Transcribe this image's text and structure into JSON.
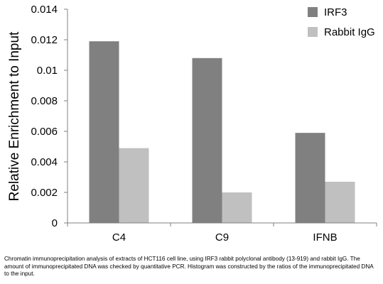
{
  "chart_data": {
    "type": "bar",
    "title": "",
    "xlabel": "",
    "ylabel": "Relative Enrichment to Input",
    "categories": [
      "C4",
      "C9",
      "IFNB"
    ],
    "series": [
      {
        "name": "IRF3",
        "values": [
          0.0119,
          0.0108,
          0.0059
        ],
        "color": "#808080"
      },
      {
        "name": "Rabbit IgG",
        "values": [
          0.0049,
          0.002,
          0.0027
        ],
        "color": "#c0c0c0"
      }
    ],
    "ylim": [
      0,
      0.014
    ],
    "yticks": [
      "0",
      "0.002",
      "0.004",
      "0.006",
      "0.008",
      "0.01",
      "0.012",
      "0.014"
    ],
    "grid": false,
    "legend": "top-right"
  },
  "caption": "Chromatin immunoprecipitation analysis of extracts of HCT116 cell line, using IRF3 rabbit polyclonal antibody (13-919) and rabbit IgG. The amount of immunoprecipitated DNA was checked by quantitative PCR. Histogram was constructed by the ratios of the immunoprecipitated DNA to the input."
}
